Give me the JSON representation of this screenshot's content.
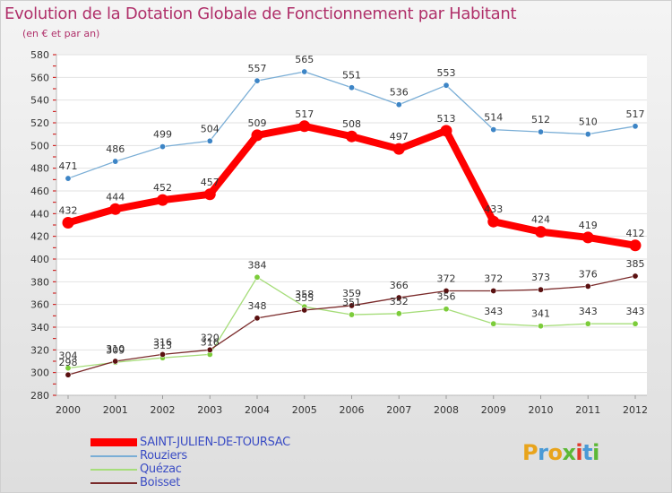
{
  "header": {
    "title": "Evolution de la Dotation Globale de Fonctionnement par Habitant",
    "subtitle": "(en € et par an)"
  },
  "logo": {
    "text": "Proxiti",
    "letter_colors": [
      "#e8a41c",
      "#4a9ad6",
      "#e8a41c",
      "#5cb836",
      "#e03c2c",
      "#4a9ad6",
      "#5cb836"
    ]
  },
  "chart_data": {
    "type": "line",
    "title": "Evolution de la Dotation Globale de Fonctionnement par Habitant",
    "subtitle": "(en € et par an)",
    "xlabel": "",
    "ylabel": "",
    "x": [
      "2000",
      "2001",
      "2002",
      "2003",
      "2004",
      "2005",
      "2006",
      "2007",
      "2008",
      "2009",
      "2010",
      "2011",
      "2012"
    ],
    "ylim": [
      280,
      580
    ],
    "yticks": [
      "280",
      "300",
      "320",
      "340",
      "360",
      "380",
      "400",
      "420",
      "440",
      "460",
      "480",
      "500",
      "520",
      "540",
      "560",
      "580"
    ],
    "grid": "horizontal",
    "legend_position": "bottom-left",
    "series": [
      {
        "name": "SAINT-JULIEN-DE-TOURSAC",
        "color": "#ff0000",
        "marker": "#ff0000",
        "values": [
          432,
          444,
          452,
          457,
          509,
          517,
          508,
          497,
          513,
          433,
          424,
          419,
          412
        ]
      },
      {
        "name": "Rouziers",
        "color": "#7aaed6",
        "marker": "#3d85c6",
        "values": [
          471,
          486,
          499,
          504,
          557,
          565,
          551,
          536,
          553,
          514,
          512,
          510,
          517
        ]
      },
      {
        "name": "Quézac",
        "color": "#a6dd7a",
        "marker": "#7ccc3a",
        "values": [
          304,
          309,
          313,
          316,
          384,
          358,
          351,
          352,
          356,
          343,
          341,
          343,
          343
        ]
      },
      {
        "name": "Boisset",
        "color": "#7a2a2a",
        "marker": "#5a1010",
        "values": [
          298,
          310,
          316,
          320,
          348,
          355,
          359,
          366,
          372,
          372,
          373,
          376,
          385
        ]
      }
    ]
  }
}
